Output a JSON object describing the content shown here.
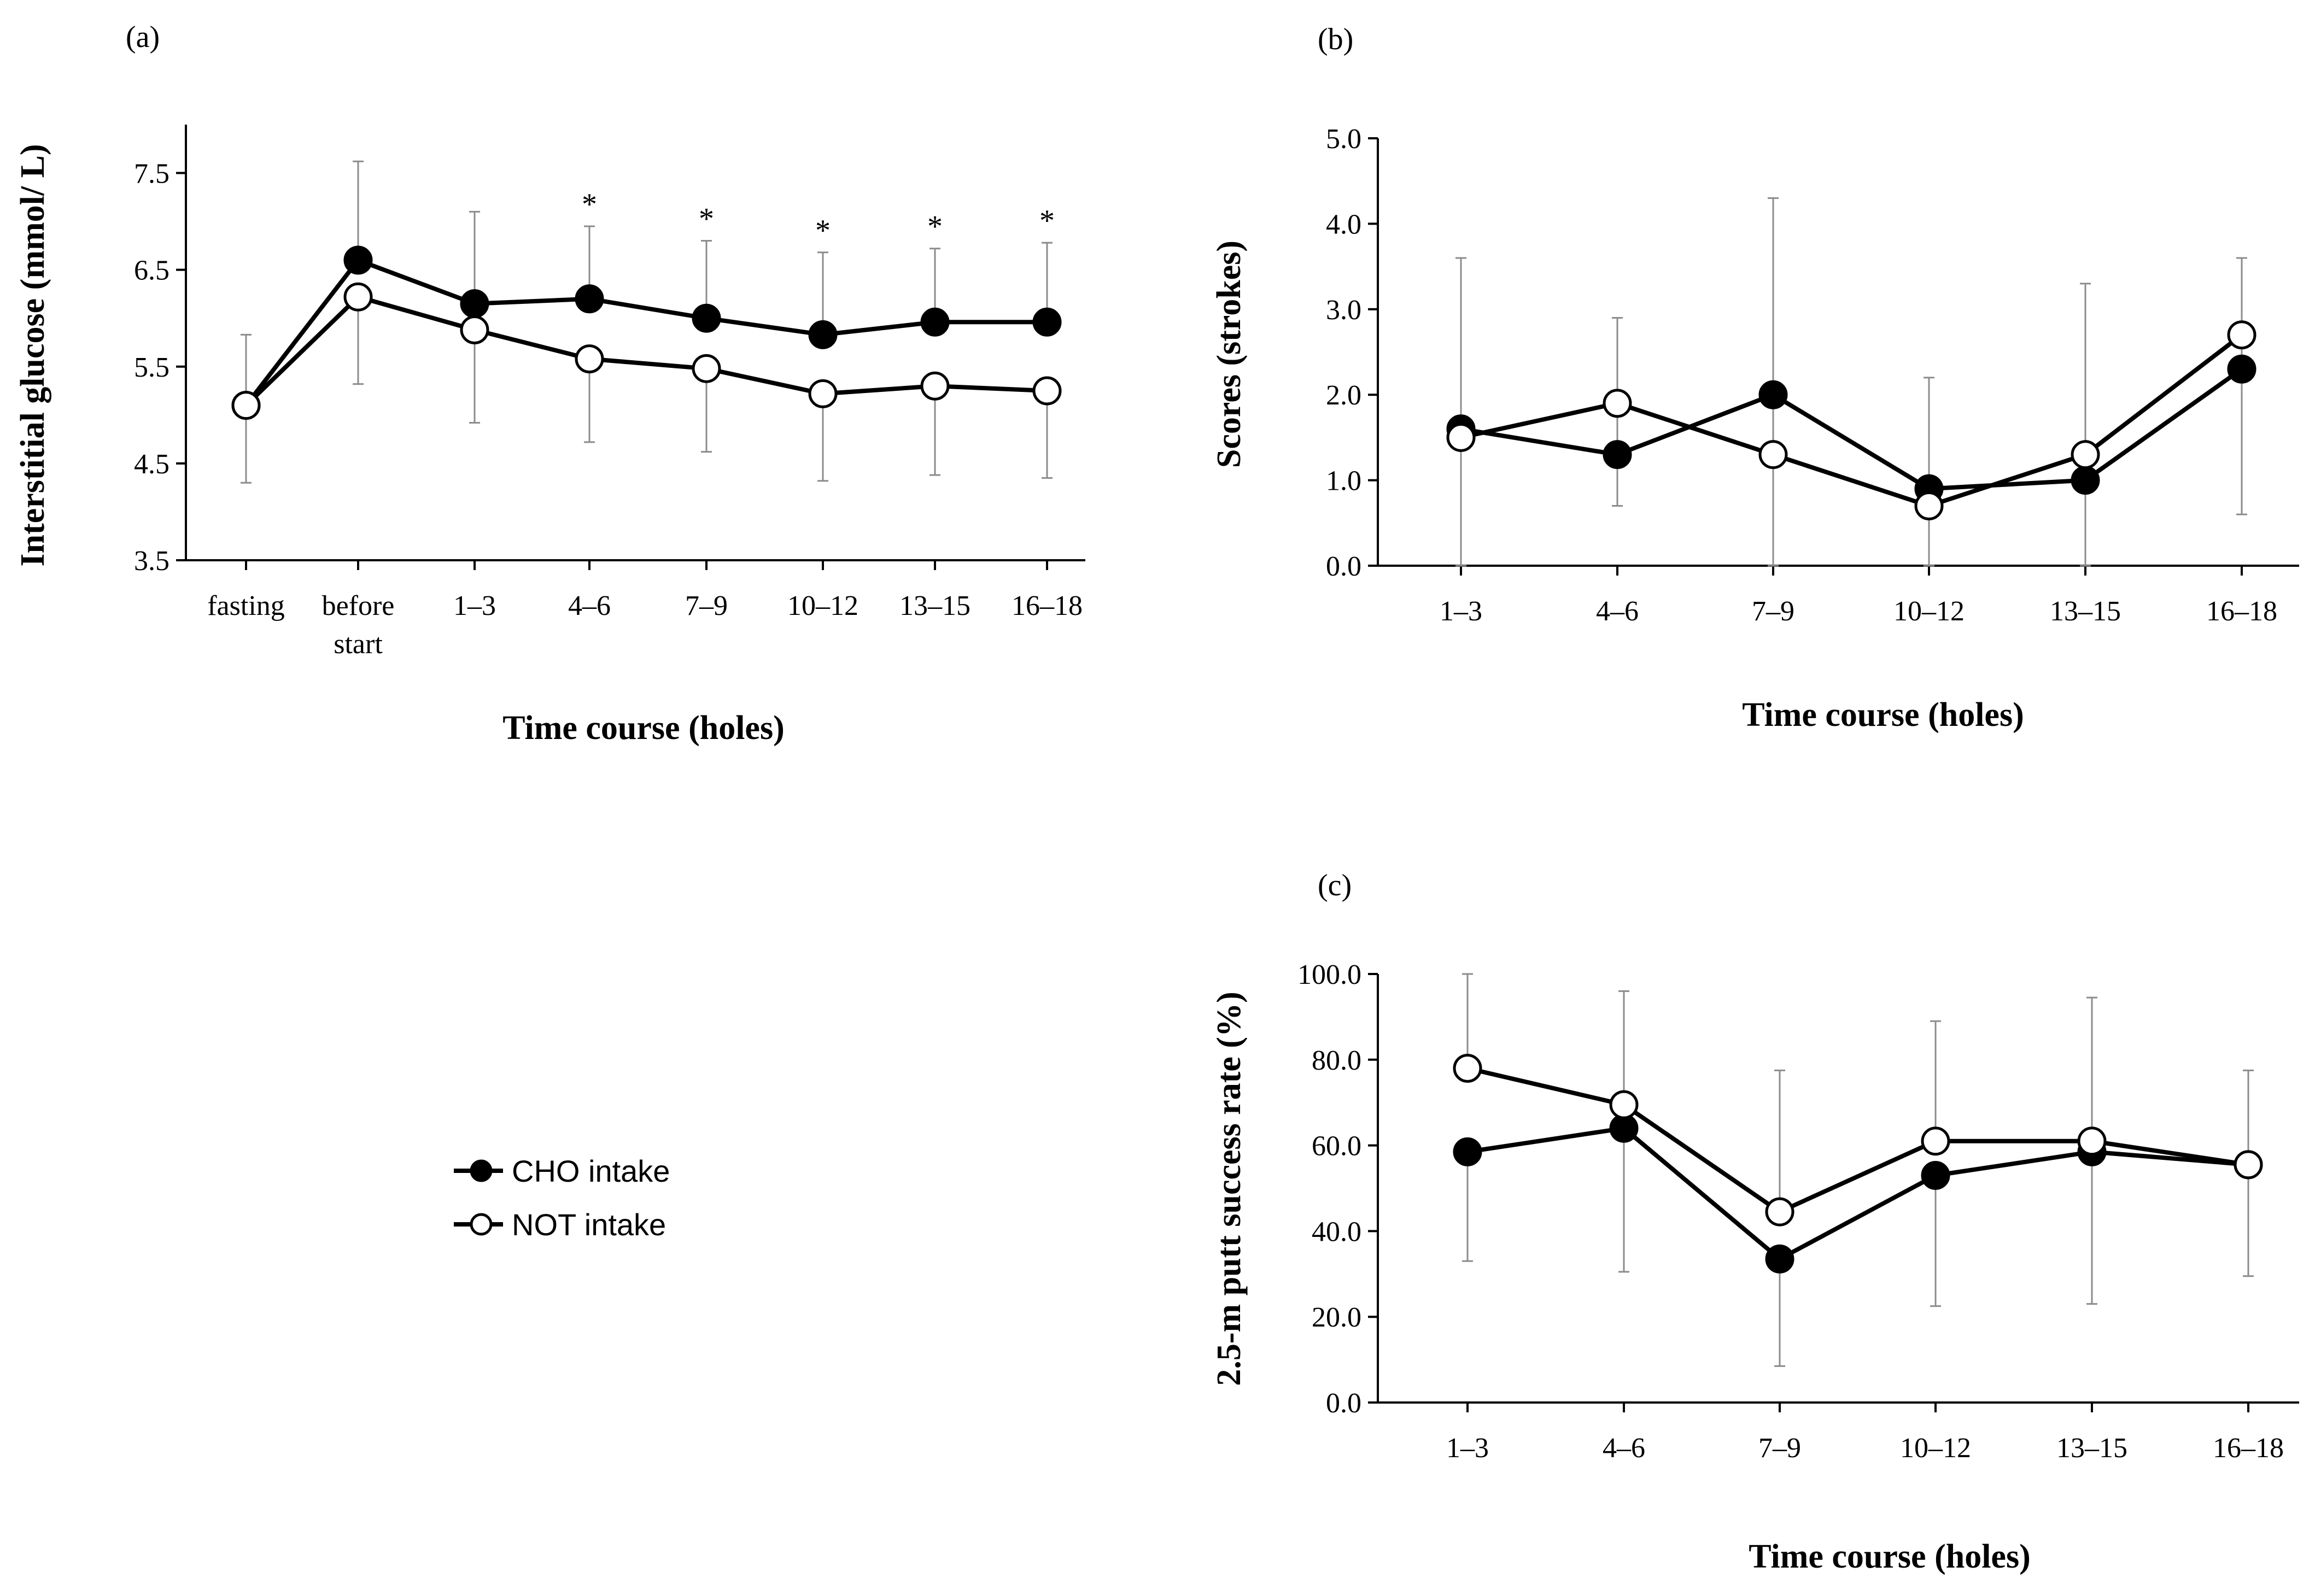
{
  "legend": {
    "cho_label": "CHO intake",
    "not_label": "NOT intake"
  },
  "chart_data": [
    {
      "id": "a",
      "type": "line",
      "panel_label": "(a)",
      "ylabel": "Interstitial glucose (mmol/ L)",
      "xlabel": "Time course (holes)",
      "ylim": [
        3.5,
        8.0
      ],
      "yticks": [
        "3.5",
        "4.5",
        "5.5",
        "6.5",
        "7.5"
      ],
      "categories": [
        "fasting",
        "before start",
        "1–3",
        "4–6",
        "7–9",
        "10–12",
        "13–15",
        "16–18"
      ],
      "series": [
        {
          "name": "CHO intake",
          "values": [
            5.1,
            6.6,
            6.15,
            6.2,
            6.0,
            5.83,
            5.96,
            5.96
          ],
          "err_hi": [
            5.83,
            7.62,
            7.1,
            6.95,
            6.8,
            6.68,
            6.72,
            6.78
          ]
        },
        {
          "name": "NOT intake",
          "values": [
            5.1,
            6.22,
            5.88,
            5.58,
            5.48,
            5.22,
            5.3,
            5.25
          ],
          "err_lo": [
            4.3,
            5.32,
            4.92,
            4.72,
            4.62,
            4.32,
            4.38,
            4.35
          ]
        }
      ],
      "annotations": [
        {
          "category": "4–6",
          "text": "*"
        },
        {
          "category": "7–9",
          "text": "*"
        },
        {
          "category": "10–12",
          "text": "*"
        },
        {
          "category": "13–15",
          "text": "*"
        },
        {
          "category": "16–18",
          "text": "*"
        }
      ]
    },
    {
      "id": "b",
      "type": "line",
      "panel_label": "(b)",
      "ylabel": "Scores (strokes)",
      "xlabel": "Time course (holes)",
      "ylim": [
        0.0,
        5.0
      ],
      "yticks": [
        "0.0",
        "1.0",
        "2.0",
        "3.0",
        "4.0",
        "5.0"
      ],
      "categories": [
        "1–3",
        "4–6",
        "7–9",
        "10–12",
        "13–15",
        "16–18"
      ],
      "series": [
        {
          "name": "CHO intake",
          "values": [
            1.6,
            1.3,
            2.0,
            0.9,
            1.0,
            2.3
          ],
          "err_hi": [
            3.6,
            2.9,
            4.3,
            2.2,
            3.3,
            3.6
          ],
          "err_lo": [
            0.0,
            0.7,
            0.0,
            0.0,
            0.0,
            0.6
          ]
        },
        {
          "name": "NOT intake",
          "values": [
            1.5,
            1.9,
            1.3,
            0.7,
            1.3,
            2.7
          ]
        }
      ]
    },
    {
      "id": "c",
      "type": "line",
      "panel_label": "(c)",
      "ylabel": "2.5-m putt success rate (%)",
      "xlabel": "Time course (holes)",
      "ylim": [
        0.0,
        100.0
      ],
      "yticks": [
        "0.0",
        "20.0",
        "40.0",
        "60.0",
        "80.0",
        "100.0"
      ],
      "categories": [
        "1–3",
        "4–6",
        "7–9",
        "10–12",
        "13–15",
        "16–18"
      ],
      "series": [
        {
          "name": "CHO intake",
          "values": [
            58.5,
            64.0,
            33.5,
            53.0,
            58.5,
            55.5
          ],
          "err_lo": [
            33.0,
            30.5,
            8.5,
            22.5,
            23.0,
            29.5
          ]
        },
        {
          "name": "NOT intake",
          "values": [
            78.0,
            69.5,
            44.5,
            61.0,
            61.0,
            55.5
          ],
          "err_hi": [
            100.0,
            96.0,
            77.5,
            89.0,
            94.5,
            77.5
          ]
        }
      ]
    }
  ]
}
